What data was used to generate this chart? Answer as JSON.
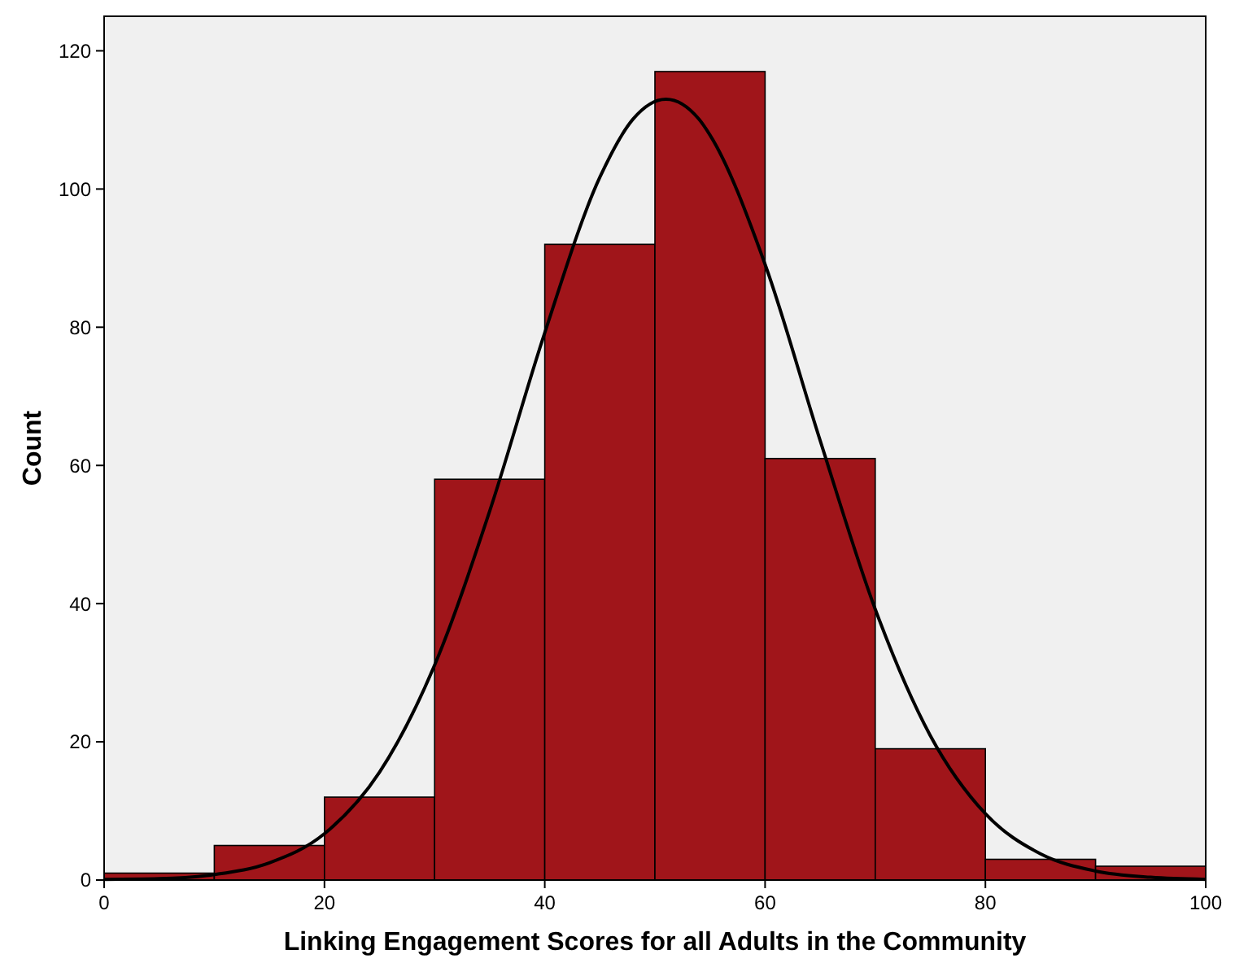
{
  "chart_data": {
    "type": "histogram",
    "xlabel": "Linking Engagement Scores for all Adults in the Community",
    "ylabel": "Count",
    "bins": [
      0,
      10,
      20,
      30,
      40,
      50,
      60,
      70,
      80,
      90,
      100
    ],
    "series": [
      {
        "color": "#a0151a",
        "values": [
          1,
          5,
          12,
          58,
          92,
          117,
          61,
          19,
          3,
          2
        ]
      },
      {
        "type": "line",
        "color": "#000000",
        "x": [
          0,
          5,
          10,
          15,
          20,
          25,
          30,
          35,
          40,
          45,
          48,
          51,
          54,
          55,
          60,
          65,
          70,
          75,
          80,
          85,
          90,
          95,
          100
        ],
        "values": [
          0.1,
          0.2,
          0.8,
          2.5,
          6.7,
          15.6,
          31.1,
          53.4,
          79.2,
          101.7,
          110.1,
          113,
          110.1,
          107.8,
          89.1,
          63.6,
          39.2,
          20.9,
          9.6,
          3.8,
          1.3,
          0.4,
          0.1
        ]
      }
    ],
    "xlim": [
      0,
      100
    ],
    "xticks": [
      0,
      20,
      40,
      60,
      80,
      100
    ],
    "ylim": [
      0,
      125
    ],
    "yticks": [
      0,
      20,
      40,
      60,
      80,
      100,
      120
    ]
  }
}
